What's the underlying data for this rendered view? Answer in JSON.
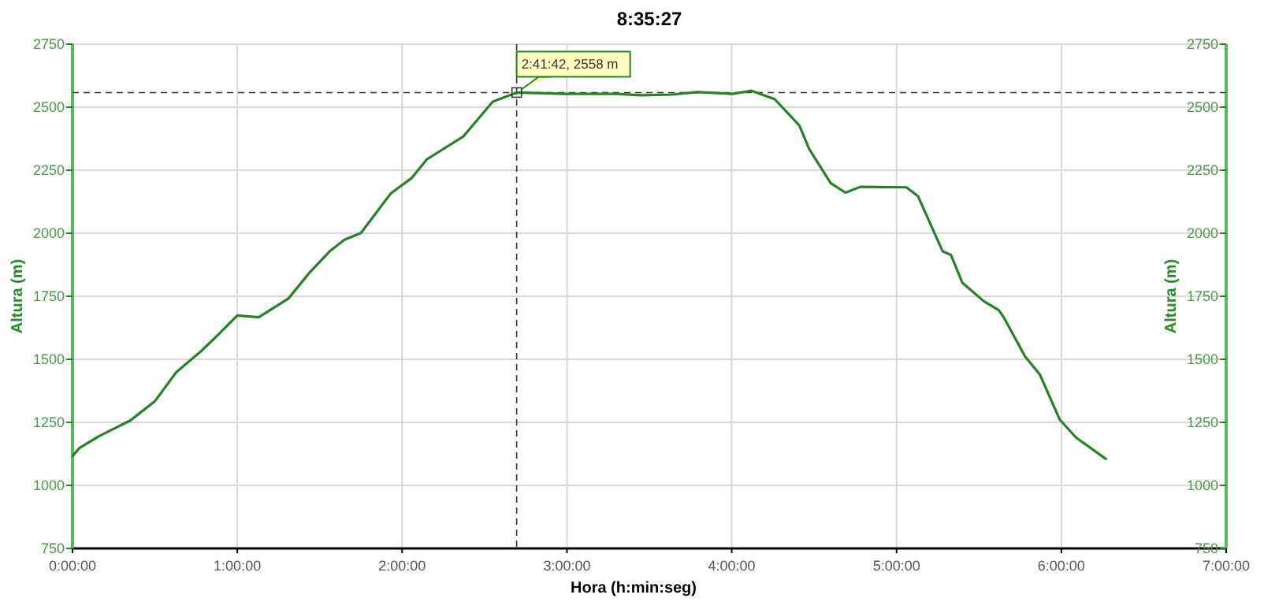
{
  "chart_data": {
    "type": "line",
    "title": "8:35:27",
    "xlabel": "Hora (h:min:seg)",
    "ylabel": "Altura (m)",
    "y2label": "Altura (m)",
    "xlim": [
      0,
      7
    ],
    "xticks": [
      {
        "value": 0,
        "label": "0:00:00"
      },
      {
        "value": 1,
        "label": "1:00:00"
      },
      {
        "value": 2,
        "label": "2:00:00"
      },
      {
        "value": 3,
        "label": "3:00:00"
      },
      {
        "value": 4,
        "label": "4:00:00"
      },
      {
        "value": 5,
        "label": "5:00:00"
      },
      {
        "value": 6,
        "label": "6:00:00"
      },
      {
        "value": 7,
        "label": "7:00:00"
      }
    ],
    "ylim": [
      750,
      2750
    ],
    "yticks": [
      750,
      1000,
      1250,
      1500,
      1750,
      2000,
      2250,
      2500,
      2750
    ],
    "y2lim": [
      750,
      2750
    ],
    "y2ticks": [
      750,
      1000,
      1250,
      1500,
      1750,
      2000,
      2250,
      2500,
      2750
    ],
    "grid": true,
    "marker": "none",
    "line_style": "solid",
    "x": [
      0,
      0.04,
      0.16,
      0.35,
      0.5,
      0.63,
      0.78,
      0.88,
      1.0,
      1.13,
      1.31,
      1.44,
      1.56,
      1.65,
      1.75,
      1.93,
      2.06,
      2.15,
      2.37,
      2.55,
      2.695,
      2.99,
      3.3,
      3.45,
      3.64,
      3.79,
      4.01,
      4.12,
      4.26,
      4.41,
      4.47,
      4.6,
      4.69,
      4.78,
      5.06,
      5.13,
      5.28,
      5.33,
      5.4,
      5.53,
      5.62,
      5.65,
      5.78,
      5.87,
      5.99,
      6.09,
      6.27
    ],
    "series": [
      {
        "color": "#2a7f2a",
        "values": [
          1116,
          1147,
          1195,
          1257,
          1334,
          1449,
          1532,
          1595,
          1674,
          1667,
          1741,
          1845,
          1928,
          1974,
          2001,
          2157,
          2220,
          2293,
          2383,
          2522,
          2558,
          2553,
          2553,
          2547,
          2550,
          2560,
          2553,
          2565,
          2532,
          2428,
          2334,
          2199,
          2161,
          2184,
          2182,
          2147,
          1928,
          1914,
          1803,
          1730,
          1695,
          1667,
          1511,
          1439,
          1261,
          1189,
          1105
        ]
      }
    ],
    "ref_lines": [
      {
        "axis": "x",
        "value": 2.695,
        "color": "#333333",
        "line_style": "dashed"
      },
      {
        "axis": "y",
        "value": 2558,
        "color": "#333333",
        "line_style": "dashed"
      }
    ],
    "annotations": [
      {
        "text": "2:41:42, 2558 m",
        "x": 2.695,
        "y": 2558
      }
    ]
  }
}
